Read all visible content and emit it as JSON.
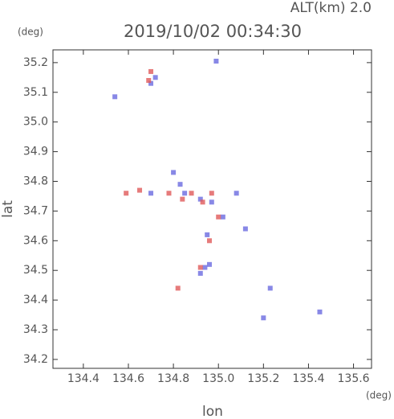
{
  "chart_data": {
    "type": "scatter",
    "title": "2019/10/02 00:34:30",
    "subtitle": "ALT(km) 2.0",
    "x_label": "lon",
    "y_label": "lat",
    "x_unit": "(deg)",
    "y_unit": "(deg)",
    "xlim": [
      134.265,
      135.68
    ],
    "ylim": [
      34.17,
      35.243
    ],
    "xticks": [
      134.4,
      134.6,
      134.8,
      {
        "value": 135.0,
        "label": "135.0"
      },
      135.2,
      135.4,
      135.6
    ],
    "yticks": [
      34.2,
      34.3,
      34.4,
      34.5,
      34.6,
      34.7,
      34.8,
      34.9,
      {
        "value": 35.0,
        "label": "35.0"
      },
      35.1,
      35.2
    ],
    "series": [
      {
        "color": "#6a6ae0",
        "x": [
          134.99,
          134.7,
          134.72,
          134.54,
          134.8,
          134.83,
          134.92,
          134.97,
          135.02,
          134.95,
          134.94,
          134.92,
          134.96,
          135.2,
          135.45,
          135.12,
          135.23,
          134.7,
          134.85,
          135.08
        ],
        "values": [
          35.205,
          35.13,
          35.15,
          35.085,
          34.83,
          34.79,
          34.74,
          34.73,
          34.68,
          34.62,
          34.51,
          34.49,
          34.52,
          34.34,
          34.36,
          34.64,
          34.44,
          34.76,
          34.76,
          34.76
        ]
      },
      {
        "color": "#e05a5a",
        "x": [
          134.7,
          134.69,
          134.59,
          134.65,
          134.78,
          134.84,
          134.88,
          134.93,
          135.0,
          134.96,
          134.92,
          134.82,
          134.97
        ],
        "values": [
          35.17,
          35.14,
          34.76,
          34.77,
          34.76,
          34.74,
          34.76,
          34.73,
          34.68,
          34.6,
          34.51,
          34.44,
          34.76
        ]
      }
    ]
  }
}
